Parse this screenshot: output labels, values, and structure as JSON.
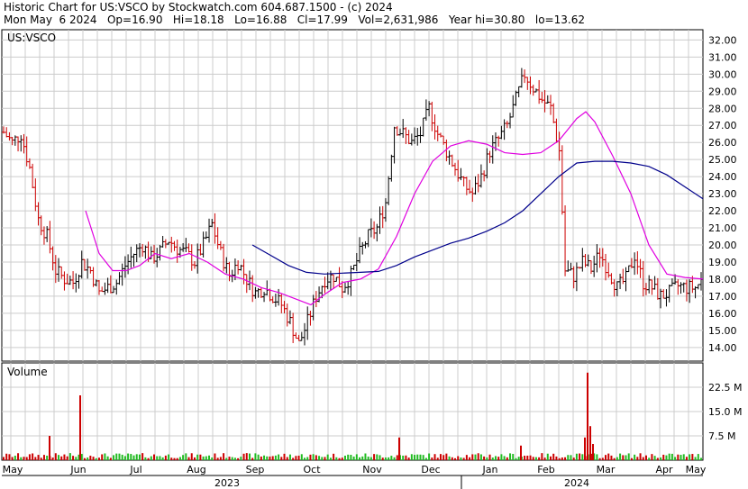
{
  "header": {
    "line1": "Historic Chart for US:VSCO by Stockwatch.com 604.687.1500 - (c) 2024",
    "line2": "Mon May  6 2024   Op=16.90   Hi=18.18   Lo=16.88   Cl=17.99   Vol=2,631,986   Year hi=30.80   lo=13.62"
  },
  "chart_data": {
    "type": "bar",
    "symbol_label": "US:VSCO",
    "volume_label": "Volume",
    "price_axis": {
      "ticks": [
        "32.00",
        "31.00",
        "30.00",
        "29.00",
        "28.00",
        "27.00",
        "26.00",
        "25.00",
        "24.00",
        "23.00",
        "22.00",
        "21.00",
        "20.00",
        "19.00",
        "18.00",
        "17.00",
        "16.00",
        "15.00",
        "14.00"
      ],
      "ylim": [
        13.2,
        32.6
      ]
    },
    "volume_axis": {
      "ticks": [
        "22.5 M",
        "15.0 M",
        "7.5 M"
      ],
      "ylim": [
        0,
        30
      ]
    },
    "months": [
      "May",
      "Jun",
      "Jul",
      "Aug",
      "Sep",
      "Oct",
      "Nov",
      "Dec",
      "Jan",
      "Feb",
      "Mar",
      "Apr",
      "May"
    ],
    "years": [
      "2023",
      "2024"
    ],
    "colors": {
      "up": "#000000",
      "down": "#cc0000",
      "ma_short": "#e000e0",
      "ma_long": "#00008b",
      "grid": "#cccccc",
      "vol_up": "#22bb22",
      "vol_down": "#cc0000"
    },
    "price_anchors": [
      [
        0,
        26.6
      ],
      [
        3,
        26.0
      ],
      [
        6,
        26.5
      ],
      [
        9,
        24.5
      ],
      [
        12,
        21.5
      ],
      [
        15,
        20.5
      ],
      [
        18,
        18.5
      ],
      [
        21,
        18.0
      ],
      [
        24,
        17.8
      ],
      [
        27,
        19.0
      ],
      [
        30,
        18.5
      ],
      [
        33,
        17.2
      ],
      [
        36,
        17.5
      ],
      [
        39,
        17.8
      ],
      [
        42,
        18.8
      ],
      [
        45,
        19.5
      ],
      [
        48,
        20.0
      ],
      [
        51,
        19.2
      ],
      [
        54,
        19.6
      ],
      [
        57,
        20.3
      ],
      [
        60,
        19.8
      ],
      [
        63,
        19.5
      ],
      [
        66,
        19.0
      ],
      [
        69,
        20.0
      ],
      [
        72,
        21.2
      ],
      [
        75,
        19.5
      ],
      [
        78,
        18.2
      ],
      [
        81,
        19.0
      ],
      [
        84,
        18.0
      ],
      [
        87,
        17.2
      ],
      [
        90,
        17.5
      ],
      [
        93,
        17.0
      ],
      [
        96,
        16.5
      ],
      [
        99,
        15.5
      ],
      [
        102,
        14.2
      ],
      [
        105,
        15.5
      ],
      [
        108,
        17.0
      ],
      [
        111,
        18.0
      ],
      [
        114,
        18.2
      ],
      [
        117,
        17.5
      ],
      [
        120,
        18.2
      ],
      [
        123,
        19.5
      ],
      [
        126,
        20.5
      ],
      [
        129,
        21.0
      ],
      [
        132,
        22.5
      ],
      [
        135,
        27.0
      ],
      [
        138,
        26.5
      ],
      [
        141,
        26.0
      ],
      [
        144,
        26.5
      ],
      [
        147,
        28.0
      ],
      [
        150,
        26.5
      ],
      [
        153,
        25.5
      ],
      [
        156,
        24.5
      ],
      [
        159,
        23.5
      ],
      [
        162,
        23.0
      ],
      [
        165,
        24.0
      ],
      [
        168,
        25.5
      ],
      [
        171,
        26.2
      ],
      [
        174,
        27.0
      ],
      [
        177,
        28.5
      ],
      [
        180,
        30.0
      ],
      [
        183,
        29.2
      ],
      [
        186,
        28.5
      ],
      [
        189,
        28.0
      ],
      [
        192,
        25.5
      ],
      [
        194,
        18.5
      ],
      [
        197,
        18.2
      ],
      [
        200,
        19.0
      ],
      [
        203,
        18.6
      ],
      [
        206,
        19.5
      ],
      [
        209,
        18.5
      ],
      [
        212,
        17.5
      ],
      [
        215,
        18.0
      ],
      [
        218,
        19.4
      ],
      [
        221,
        17.8
      ],
      [
        224,
        17.5
      ],
      [
        227,
        17.0
      ],
      [
        230,
        17.2
      ],
      [
        233,
        17.6
      ],
      [
        236,
        17.5
      ],
      [
        239,
        17.5
      ],
      [
        241,
        17.9
      ]
    ],
    "ma_short": [
      [
        95,
        22.0
      ],
      [
        110,
        19.5
      ],
      [
        125,
        18.5
      ],
      [
        140,
        18.5
      ],
      [
        155,
        18.8
      ],
      [
        172,
        19.5
      ],
      [
        190,
        19.2
      ],
      [
        210,
        19.5
      ],
      [
        230,
        19.0
      ],
      [
        250,
        18.3
      ],
      [
        270,
        18.0
      ],
      [
        290,
        17.5
      ],
      [
        310,
        17.2
      ],
      [
        330,
        16.8
      ],
      [
        345,
        16.5
      ],
      [
        360,
        17.1
      ],
      [
        380,
        17.8
      ],
      [
        400,
        18.0
      ],
      [
        420,
        18.6
      ],
      [
        440,
        20.5
      ],
      [
        460,
        23.0
      ],
      [
        480,
        24.9
      ],
      [
        500,
        25.8
      ],
      [
        520,
        26.1
      ],
      [
        540,
        25.9
      ],
      [
        560,
        25.4
      ],
      [
        580,
        25.3
      ],
      [
        600,
        25.4
      ],
      [
        620,
        26.1
      ],
      [
        640,
        27.4
      ],
      [
        650,
        27.8
      ],
      [
        660,
        27.2
      ],
      [
        680,
        25.2
      ],
      [
        700,
        23.0
      ],
      [
        720,
        20.0
      ],
      [
        740,
        18.3
      ],
      [
        760,
        18.1
      ],
      [
        780,
        18.0
      ]
    ],
    "ma_long": [
      [
        280,
        20.0
      ],
      [
        300,
        19.4
      ],
      [
        320,
        18.8
      ],
      [
        340,
        18.4
      ],
      [
        360,
        18.3
      ],
      [
        380,
        18.35
      ],
      [
        400,
        18.4
      ],
      [
        420,
        18.45
      ],
      [
        440,
        18.8
      ],
      [
        460,
        19.3
      ],
      [
        480,
        19.7
      ],
      [
        500,
        20.1
      ],
      [
        520,
        20.4
      ],
      [
        540,
        20.8
      ],
      [
        560,
        21.3
      ],
      [
        580,
        22.0
      ],
      [
        600,
        23.0
      ],
      [
        620,
        24.0
      ],
      [
        640,
        24.8
      ],
      [
        660,
        24.9
      ],
      [
        680,
        24.9
      ],
      [
        700,
        24.8
      ],
      [
        720,
        24.6
      ],
      [
        740,
        24.1
      ],
      [
        760,
        23.4
      ],
      [
        780,
        22.7
      ]
    ],
    "volume_spikes": [
      [
        55,
        7.5
      ],
      [
        89,
        20
      ],
      [
        443,
        7
      ],
      [
        652,
        27
      ],
      [
        655,
        10.5
      ],
      [
        649,
        7
      ],
      [
        578,
        4.5
      ],
      [
        658,
        5
      ]
    ]
  }
}
